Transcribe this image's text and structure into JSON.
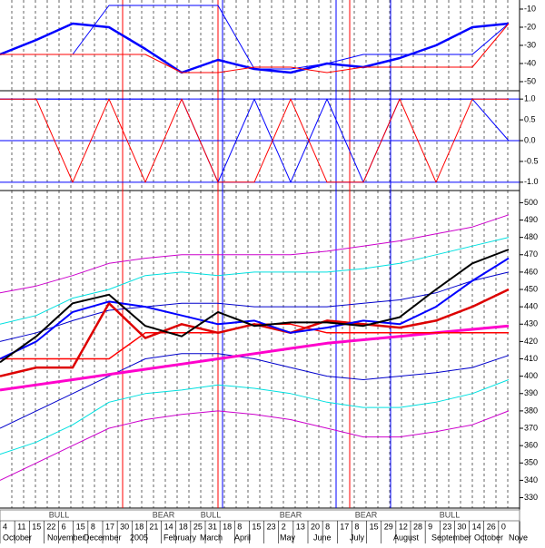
{
  "chart_data": [
    {
      "type": "line",
      "x": [
        0,
        4,
        8,
        12,
        16,
        20,
        24,
        28,
        32,
        36,
        40,
        44,
        48,
        52,
        56
      ],
      "xlim": [
        0,
        57
      ],
      "ylim": [
        -55,
        -5
      ],
      "yticks": [
        -10,
        -20,
        -30,
        -40,
        -50
      ],
      "series": [
        {
          "name": null,
          "color": "#0000ff",
          "width": 2.5,
          "values": [
            -35,
            -27,
            -18,
            -20,
            -32,
            -45,
            -38,
            -43,
            -45,
            -40,
            -42,
            -37,
            -30,
            -20,
            -18
          ]
        },
        {
          "name": null,
          "color": "#0000ff",
          "width": 1,
          "values": [
            -35,
            -35,
            -35,
            -8,
            -8,
            -8,
            -8,
            -43,
            -43,
            -40,
            -35,
            -35,
            -35,
            -35,
            -18
          ]
        },
        {
          "name": null,
          "color": "#ff0000",
          "width": 1,
          "values": [
            -35,
            -35,
            -35,
            -35,
            -35,
            -45,
            -45,
            -42,
            -42,
            -45,
            -42,
            -42,
            -42,
            -42,
            -18
          ]
        }
      ]
    },
    {
      "type": "line",
      "x": [
        0,
        4,
        8,
        12,
        16,
        20,
        24,
        28,
        32,
        36,
        40,
        44,
        48,
        52,
        56
      ],
      "xlim": [
        0,
        57
      ],
      "ylim": [
        -1.2,
        1.2
      ],
      "yticks": [
        {
          "value": 1,
          "label": "1.0"
        },
        0.5,
        {
          "value": 0,
          "label": "0.0"
        },
        -0.5,
        {
          "value": -1,
          "label": "-1.0"
        }
      ],
      "series": [
        {
          "name": null,
          "color": "#0000ff",
          "width": 1,
          "values": [
            1,
            1,
            1,
            1,
            1,
            1,
            -1,
            1,
            -1,
            1,
            -1,
            1,
            1,
            1,
            0
          ]
        },
        {
          "name": null,
          "color": "#ff0000",
          "width": 1,
          "values": [
            1,
            1,
            -1,
            1,
            -1,
            1,
            -1,
            -1,
            1,
            -1,
            -1,
            1,
            -1,
            1,
            1
          ]
        }
      ]
    },
    {
      "type": "line",
      "x": [
        0,
        4,
        8,
        12,
        16,
        20,
        24,
        28,
        32,
        36,
        40,
        44,
        48,
        52,
        56
      ],
      "xlim": [
        0,
        57
      ],
      "ylim": [
        324,
        507
      ],
      "yticks": [
        500,
        490,
        480,
        470,
        460,
        450,
        440,
        430,
        420,
        410,
        400,
        390,
        380,
        370,
        360,
        350,
        340,
        330
      ],
      "series": [
        {
          "name": null,
          "color": "#cc00cc",
          "width": 1,
          "values": [
            448,
            452,
            458,
            465,
            468,
            470,
            470,
            470,
            470,
            472,
            475,
            478,
            482,
            486,
            493
          ]
        },
        {
          "name": null,
          "color": "#00e0e0",
          "width": 1,
          "values": [
            430,
            435,
            445,
            450,
            458,
            460,
            458,
            460,
            460,
            460,
            462,
            465,
            470,
            475,
            480
          ]
        },
        {
          "name": null,
          "color": "#0000cc",
          "width": 1,
          "values": [
            420,
            425,
            432,
            438,
            440,
            442,
            442,
            440,
            440,
            440,
            442,
            444,
            448,
            455,
            460
          ]
        },
        {
          "name": null,
          "color": "#0000cc",
          "width": 1,
          "values": [
            370,
            380,
            390,
            400,
            410,
            413,
            413,
            410,
            405,
            400,
            398,
            400,
            402,
            405,
            412
          ]
        },
        {
          "name": null,
          "color": "#00e0e0",
          "width": 1,
          "values": [
            355,
            362,
            372,
            385,
            390,
            392,
            395,
            393,
            390,
            385,
            382,
            382,
            385,
            390,
            398
          ]
        },
        {
          "name": null,
          "color": "#cc00cc",
          "width": 1,
          "values": [
            340,
            350,
            360,
            370,
            375,
            378,
            380,
            378,
            375,
            370,
            365,
            365,
            368,
            372,
            380
          ]
        },
        {
          "name": null,
          "color": "#ff00cc",
          "width": 3,
          "values": [
            392,
            395,
            398,
            401,
            404,
            407,
            410,
            413,
            416,
            419,
            421,
            423,
            425,
            427,
            429
          ]
        },
        {
          "name": null,
          "color": "#ff0000",
          "width": 1.5,
          "values": [
            410,
            410,
            410,
            410,
            425,
            425,
            425,
            430,
            430,
            425,
            425,
            425,
            425,
            425,
            425
          ]
        },
        {
          "name": null,
          "color": "#dd0000",
          "width": 2.5,
          "values": [
            400,
            405,
            405,
            442,
            422,
            430,
            425,
            430,
            425,
            432,
            430,
            428,
            432,
            440,
            450
          ]
        },
        {
          "name": null,
          "color": "#0000ff",
          "width": 2,
          "values": [
            410,
            420,
            437,
            443,
            440,
            435,
            430,
            432,
            425,
            428,
            432,
            430,
            440,
            455,
            468
          ]
        },
        {
          "name": null,
          "color": "#000000",
          "width": 2,
          "values": [
            408,
            423,
            442,
            447,
            429,
            423,
            437,
            429,
            431,
            431,
            429,
            434,
            450,
            465,
            473
          ]
        }
      ]
    }
  ],
  "timeline": {
    "regimes": [
      "BULL",
      "BEAR",
      "BULL",
      "BEAR",
      "BEAR",
      "BULL"
    ],
    "days": [
      "4",
      "11",
      "15",
      "22",
      "6",
      "15",
      "8",
      "17",
      "30",
      "18",
      "21",
      "14",
      "18",
      "25",
      "31",
      "18",
      "8",
      "15",
      "23",
      "2",
      "13",
      "20",
      "8",
      "17",
      "8",
      "15",
      "29",
      "12",
      "28",
      "9",
      "23",
      "30",
      "14",
      "26",
      "0"
    ],
    "months": [
      "October",
      "November",
      "December",
      "2005",
      "February",
      "March",
      "April",
      "May",
      "June",
      "July",
      "August",
      "September",
      "October",
      "Nove"
    ]
  }
}
